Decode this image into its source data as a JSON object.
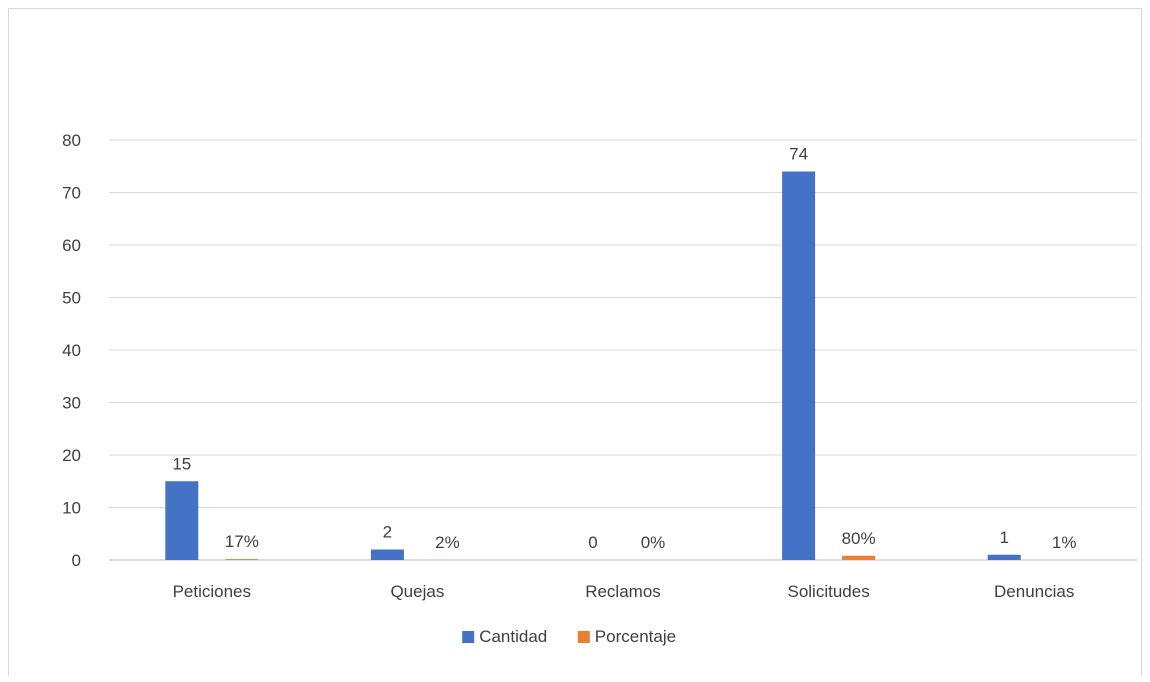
{
  "chart_data": {
    "type": "bar",
    "title": "",
    "xlabel": "",
    "ylabel": "",
    "categories": [
      "Peticiones",
      "Quejas",
      "Reclamos",
      "Solicitudes",
      "Denuncias"
    ],
    "series": [
      {
        "name": "Cantidad",
        "values": [
          15,
          2,
          0,
          74,
          1
        ],
        "labels": [
          "15",
          "2",
          "0",
          "74",
          "1"
        ],
        "color": "#4472c4"
      },
      {
        "name": "Porcentaje",
        "values": [
          0.17,
          0.02,
          0,
          0.8,
          0.01
        ],
        "labels": [
          "17%",
          "2%",
          "0%",
          "80%",
          "1%"
        ],
        "color": "#ed7d31"
      }
    ],
    "ylim": [
      0,
      80
    ],
    "yticks": [
      0,
      10,
      20,
      30,
      40,
      50,
      60,
      70,
      80
    ],
    "grid": true,
    "legend": "bottom"
  }
}
